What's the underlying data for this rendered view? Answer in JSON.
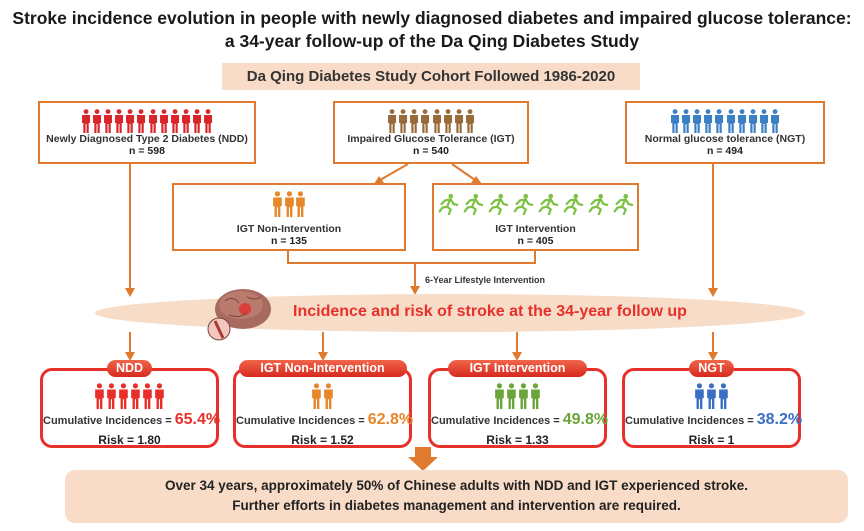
{
  "title": {
    "line1": "Stroke incidence evolution in people with newly diagnosed diabetes and impaired glucose tolerance:",
    "line2": "a 34-year follow-up of the Da Qing Diabetes Study"
  },
  "banner": "Da Qing Diabetes Study Cohort Followed 1986-2020",
  "cohorts": {
    "ndd": {
      "label": "Newly Diagnosed Type 2 Diabetes (NDD)",
      "n": "n = 598",
      "icon": "person-icon",
      "count": 12,
      "color": "#d9262a"
    },
    "igt": {
      "label": "Impaired Glucose Tolerance (IGT)",
      "n": "n = 540",
      "icon": "person-icon",
      "count": 8,
      "color": "#9a6b3a"
    },
    "ngt": {
      "label": "Normal glucose tolerance (NGT)",
      "n": "n = 494",
      "icon": "person-icon",
      "count": 10,
      "color": "#3b7fc4"
    },
    "igt_non": {
      "label": "IGT Non-Intervention",
      "n": "n = 135",
      "icon": "person-icon",
      "count": 3,
      "color": "#e8862a"
    },
    "igt_int": {
      "label": "IGT Intervention",
      "n": "n = 405",
      "icon": "runner-icon",
      "count": 8,
      "color": "#7dc142"
    }
  },
  "intervention_label": "6-Year Lifestyle Intervention",
  "band_text": "Incidence and risk of stroke at the 34-year follow up",
  "results": [
    {
      "tab": "NDD",
      "ci_label": "Cumulative Incidences =",
      "ci_value": "65.4%",
      "risk": "Risk = 1.80",
      "color": "#e8302a",
      "icons": 6
    },
    {
      "tab": "IGT Non-Intervention",
      "ci_label": "Cumulative Incidences =",
      "ci_value": "62.8%",
      "risk": "Risk = 1.52",
      "color": "#e8862a",
      "icons": 2
    },
    {
      "tab": "IGT Intervention",
      "ci_label": "Cumulative Incidences =",
      "ci_value": "49.8%",
      "risk": "Risk = 1.33",
      "color": "#6aa43a",
      "icons": 4
    },
    {
      "tab": "NGT",
      "ci_label": "Cumulative Incidences =",
      "ci_value": "38.2%",
      "risk": "Risk = 1",
      "color": "#3b6fc4",
      "icons": 3
    }
  ],
  "conclusion": {
    "line1": "Over 34 years, approximately 50% of Chinese adults with NDD and IGT experienced stroke.",
    "line2": "Further efforts in diabetes management and intervention are required."
  }
}
